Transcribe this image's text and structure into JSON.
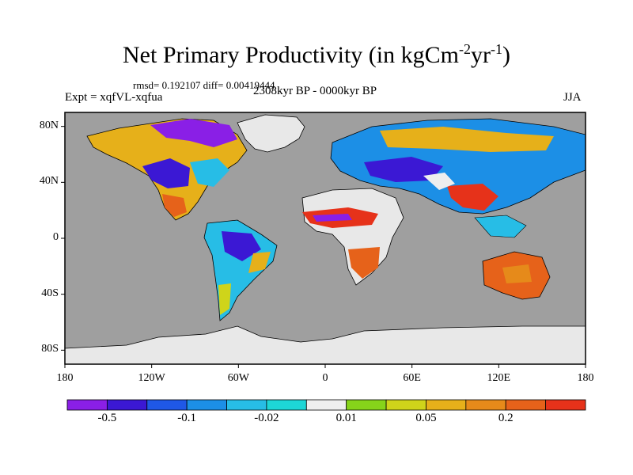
{
  "title": {
    "text": "Net Primary Productivity (in kgCm",
    "sup1": "-2",
    "mid": "yr",
    "sup2": "-1",
    "end": ")"
  },
  "stats_text": "rmsd= 0.192107 diff= 0.00419444",
  "experiment_text": "Expt = xqfVL-xqfua",
  "period_text": "2308kyr BP - 0000kyr BP",
  "season_text": "JJA",
  "chart_data": {
    "type": "heatmap",
    "title": "Net Primary Productivity (in kgCm-2yr-1)",
    "projection": "cylindrical equidistant",
    "lon_range": [
      -180,
      180
    ],
    "lat_range": [
      -90,
      90
    ],
    "y_ticks": [
      {
        "lat": 80,
        "label": "80N"
      },
      {
        "lat": 40,
        "label": "40N"
      },
      {
        "lat": 0,
        "label": "0"
      },
      {
        "lat": -40,
        "label": "40S"
      },
      {
        "lat": -80,
        "label": "80S"
      }
    ],
    "x_ticks": [
      {
        "lon": -180,
        "label": "180"
      },
      {
        "lon": -120,
        "label": "120W"
      },
      {
        "lon": -60,
        "label": "60W"
      },
      {
        "lon": 0,
        "label": "0"
      },
      {
        "lon": 60,
        "label": "60E"
      },
      {
        "lon": 120,
        "label": "120E"
      },
      {
        "lon": 180,
        "label": "180"
      }
    ],
    "colors": {
      "ocean": "#9f9f9f",
      "no_change": "#e8e8e8",
      "scale": [
        "#8a1fe6",
        "#3b18d4",
        "#1f58e6",
        "#1c8fe6",
        "#27bde6",
        "#1dd6d6",
        "#eeeeee",
        "#86d41a",
        "#cfd41a",
        "#e6b01a",
        "#e68a1a",
        "#e6621a",
        "#e6321a"
      ]
    },
    "colorbar_labels": [
      "-0.5",
      "-0.1",
      "-0.02",
      "0.01",
      "0.05",
      "0.2"
    ]
  }
}
